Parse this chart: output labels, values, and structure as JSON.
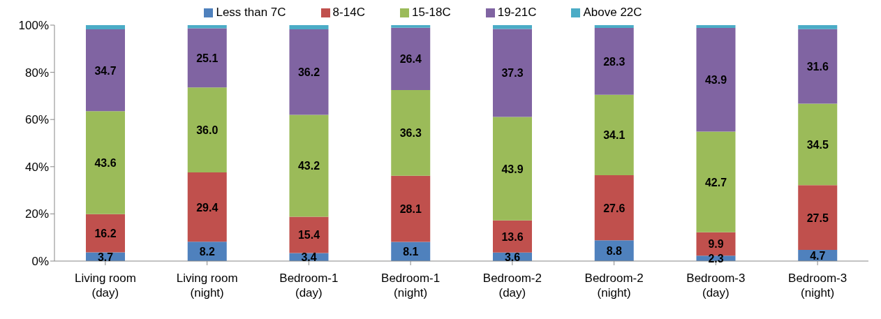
{
  "chart_data": {
    "type": "bar",
    "stacked": true,
    "categories": [
      "Living room\n(day)",
      "Living room\n(night)",
      "Bedroom-1\n(day)",
      "Bedroom-1\n(night)",
      "Bedroom-2\n(day)",
      "Bedroom-2\n(night)",
      "Bedroom-3\n(day)",
      "Bedroom-3\n(night)"
    ],
    "series": [
      {
        "name": "Less than 7C",
        "color": "#4f81bd",
        "values": [
          3.7,
          8.2,
          3.4,
          8.1,
          3.6,
          8.8,
          2.3,
          4.7
        ],
        "value_labels": [
          "3.7",
          "8.2",
          "3.4",
          "8.1",
          "3.6",
          "8.8",
          "2.3",
          "4.7"
        ]
      },
      {
        "name": "8-14C",
        "color": "#c0504d",
        "values": [
          16.2,
          29.4,
          15.4,
          28.1,
          13.6,
          27.6,
          9.9,
          27.5
        ],
        "value_labels": [
          "16.2",
          "29.4",
          "15.4",
          "28.1",
          "13.6",
          "27.6",
          "9.9",
          "27.5"
        ]
      },
      {
        "name": "15-18C",
        "color": "#9bbb59",
        "values": [
          43.6,
          36.0,
          43.2,
          36.3,
          43.9,
          34.1,
          42.7,
          34.5
        ],
        "value_labels": [
          "43.6",
          "36.0",
          "43.2",
          "36.3",
          "43.9",
          "34.1",
          "42.7",
          "34.5"
        ]
      },
      {
        "name": "19-21C",
        "color": "#8064a2",
        "values": [
          34.7,
          25.1,
          36.2,
          26.4,
          37.3,
          28.3,
          43.9,
          31.6
        ],
        "value_labels": [
          "34.7",
          "25.1",
          "36.2",
          "26.4",
          "37.3",
          "28.3",
          "43.9",
          "31.6"
        ]
      },
      {
        "name": "Above 22C",
        "color": "#4bacc6",
        "values": [
          1.8,
          1.3,
          1.8,
          1.1,
          1.6,
          1.2,
          1.2,
          1.7
        ]
      }
    ],
    "ylim": [
      0,
      100
    ],
    "yticks": [
      {
        "value": 0,
        "label": "0%"
      },
      {
        "value": 20,
        "label": "20%"
      },
      {
        "value": 40,
        "label": "40%"
      },
      {
        "value": 60,
        "label": "60%"
      },
      {
        "value": 80,
        "label": "80%"
      },
      {
        "value": 100,
        "label": "100%"
      }
    ],
    "grid": false,
    "legend": "top"
  }
}
